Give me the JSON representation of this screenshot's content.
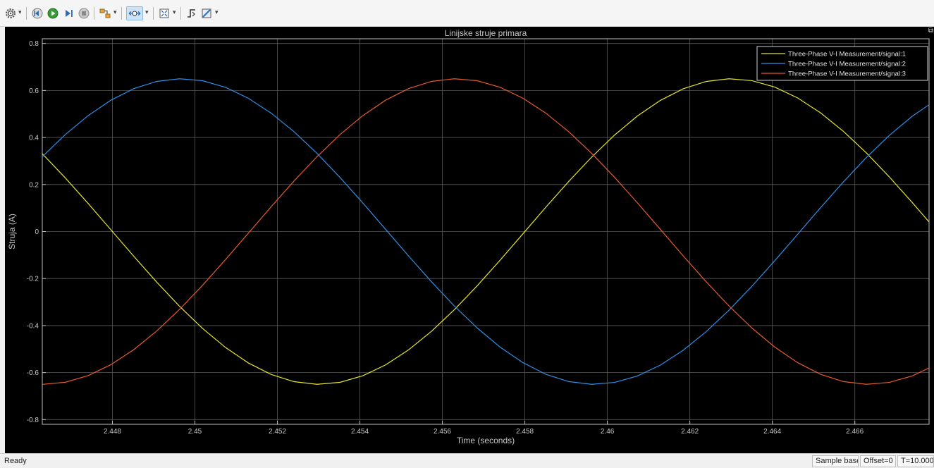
{
  "toolbar": {
    "buttons": [
      {
        "name": "settings-button",
        "icon": "gear-icon"
      },
      {
        "name": "step-back-button",
        "icon": "step-back-icon"
      },
      {
        "name": "run-button",
        "icon": "play-icon"
      },
      {
        "name": "step-forward-button",
        "icon": "step-forward-icon"
      },
      {
        "name": "stop-button",
        "icon": "stop-icon"
      },
      {
        "name": "highlight-signal-button",
        "icon": "signal-connect-icon"
      },
      {
        "name": "zoom-button",
        "icon": "zoom-icon"
      },
      {
        "name": "autoscale-button",
        "icon": "fit-to-view-icon"
      },
      {
        "name": "triggers-button",
        "icon": "trigger-icon"
      },
      {
        "name": "cursor-measurements-button",
        "icon": "ruler-icon"
      }
    ]
  },
  "chart_data": {
    "type": "line",
    "title": "Linijske struje primara",
    "xlabel": "Time (seconds)",
    "ylabel": "Struja (A)",
    "xlim": [
      2.4463,
      2.4678
    ],
    "ylim": [
      -0.82,
      0.82
    ],
    "xticks": [
      2.448,
      2.45,
      2.452,
      2.454,
      2.456,
      2.458,
      2.46,
      2.462,
      2.464,
      2.466
    ],
    "xtick_labels": [
      "2.448",
      "2.45",
      "2.452",
      "2.454",
      "2.456",
      "2.458",
      "2.46",
      "2.462",
      "2.464",
      "2.466"
    ],
    "yticks": [
      -0.8,
      -0.6,
      -0.4,
      -0.2,
      0,
      0.2,
      0.4,
      0.6,
      0.8
    ],
    "ytick_labels": [
      "-0.8",
      "-0.6",
      "-0.4",
      "-0.2",
      "0",
      "0.2",
      "0.4",
      "0.6",
      "0.8"
    ],
    "grid": true,
    "legend_position": "top-right",
    "sample_step": 0.000555,
    "series": [
      {
        "name": "Three-Phase V-I Measurement/signal:1",
        "color": "#e6e62e",
        "amplitude": 0.65,
        "frequency_hz": 50,
        "peak_time": 2.463
      },
      {
        "name": "Three-Phase V-I Measurement/signal:2",
        "color": "#2e8fe6",
        "amplitude": 0.65,
        "frequency_hz": 50,
        "peak_time": 2.44967
      },
      {
        "name": "Three-Phase V-I Measurement/signal:3",
        "color": "#e65a2e",
        "amplitude": 0.65,
        "frequency_hz": 50,
        "peak_time": 2.45633
      }
    ],
    "colors": {
      "background": "#000000",
      "grid": "#595959",
      "text": "#c8c8c8",
      "axes": "#bfbfbf"
    }
  },
  "status": {
    "ready": "Ready",
    "mode": "Sample based",
    "offset": "Offset=0",
    "time": "T=10.000"
  }
}
